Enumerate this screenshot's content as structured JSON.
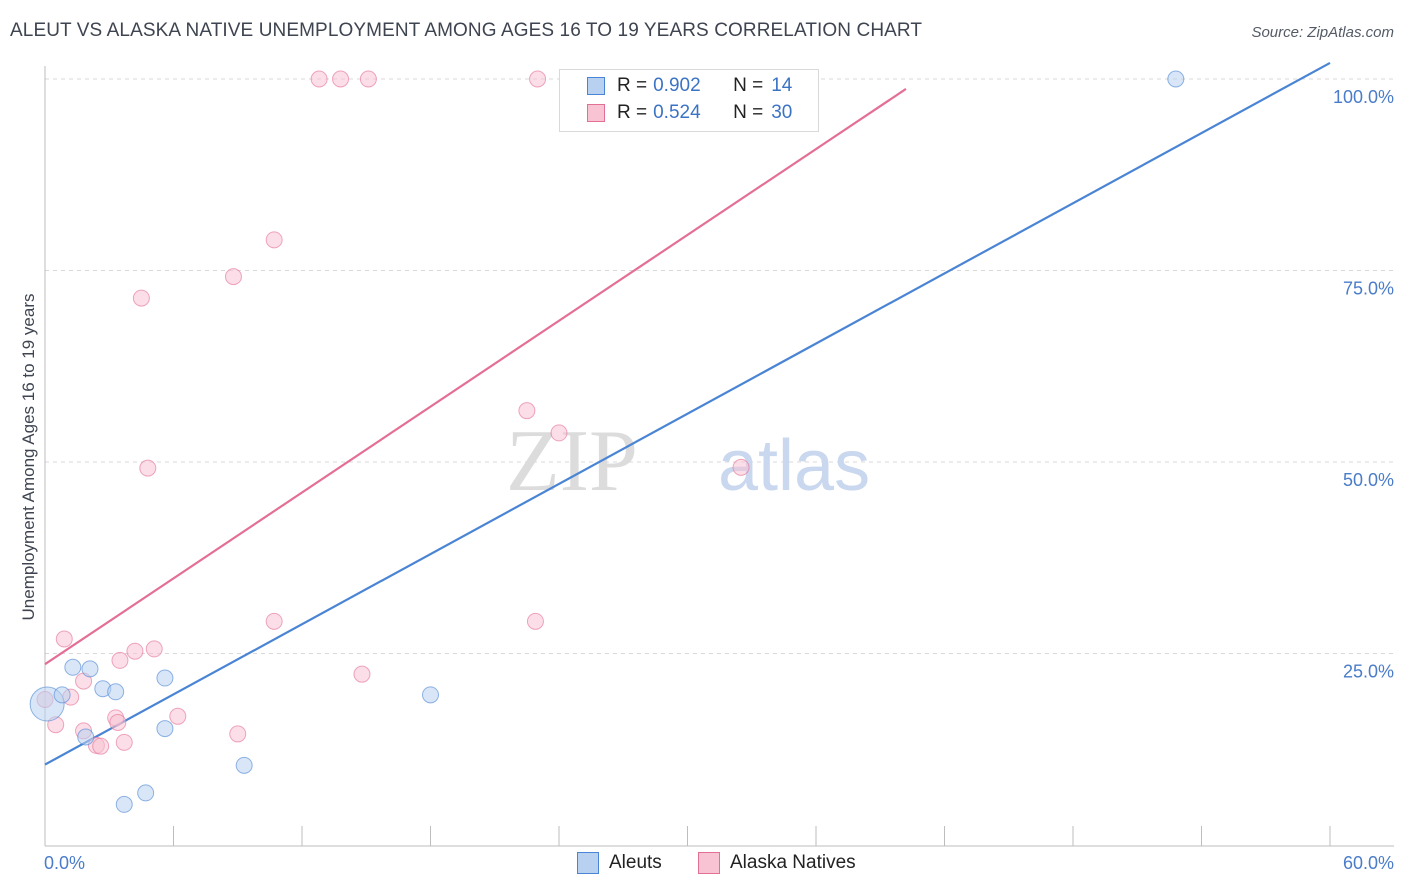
{
  "chart_data": {
    "type": "scatter",
    "title": "ALEUT VS ALASKA NATIVE UNEMPLOYMENT AMONG AGES 16 TO 19 YEARS CORRELATION CHART",
    "source": "Source: ZipAtlas.com",
    "ylabel": "Unemployment Among Ages 16 to 19 years",
    "xlabel": "",
    "xlim": [
      0,
      60
    ],
    "ylim": [
      0,
      100
    ],
    "x_tick_labels": {
      "min": "0.0%",
      "max": "60.0%"
    },
    "y_ticks": [
      {
        "value": 25,
        "label": "25.0%"
      },
      {
        "value": 50,
        "label": "50.0%"
      },
      {
        "value": 75,
        "label": "75.0%"
      },
      {
        "value": 100,
        "label": "100.0%"
      }
    ],
    "watermark": {
      "part1": "ZIP",
      "part2": "atlas"
    },
    "legend": {
      "rows": [
        {
          "r_label": "R =",
          "r_value": "0.902",
          "n_label": "N =",
          "n_value": "14"
        },
        {
          "r_label": "R =",
          "r_value": "0.524",
          "n_label": "N =",
          "n_value": "30"
        }
      ]
    },
    "series": [
      {
        "name": "Aleuts",
        "color": "#4a84d4",
        "fill": "#b9d1f0",
        "points": [
          [
            0.1,
            18.4
          ],
          [
            0.8,
            19.6
          ],
          [
            1.3,
            23.2
          ],
          [
            2.1,
            23.0
          ],
          [
            2.7,
            20.4
          ],
          [
            3.3,
            20.0
          ],
          [
            1.9,
            14.1
          ],
          [
            5.6,
            21.8
          ],
          [
            5.6,
            15.2
          ],
          [
            9.3,
            10.4
          ],
          [
            3.7,
            5.3
          ],
          [
            4.7,
            6.8
          ],
          [
            18.0,
            19.6
          ],
          [
            52.8,
            100.0
          ]
        ],
        "trend": {
          "x": [
            0,
            60
          ],
          "y": [
            10.5,
            102.1
          ]
        }
      },
      {
        "name": "Alaska Natives",
        "color": "#e46f94",
        "fill": "#f8c3d3",
        "points": [
          [
            0.0,
            19.0
          ],
          [
            0.5,
            15.7
          ],
          [
            0.9,
            26.9
          ],
          [
            1.2,
            19.3
          ],
          [
            1.8,
            21.4
          ],
          [
            1.8,
            14.9
          ],
          [
            2.4,
            13.0
          ],
          [
            2.6,
            12.9
          ],
          [
            3.3,
            16.6
          ],
          [
            3.4,
            16.0
          ],
          [
            3.5,
            24.1
          ],
          [
            3.7,
            13.4
          ],
          [
            4.2,
            25.3
          ],
          [
            5.1,
            25.6
          ],
          [
            6.2,
            16.8
          ],
          [
            4.5,
            71.4
          ],
          [
            4.8,
            49.2
          ],
          [
            9.0,
            14.5
          ],
          [
            8.8,
            74.2
          ],
          [
            10.7,
            79.0
          ],
          [
            10.7,
            29.2
          ],
          [
            12.8,
            100.0
          ],
          [
            13.8,
            100.0
          ],
          [
            15.1,
            100.0
          ],
          [
            14.8,
            22.3
          ],
          [
            22.5,
            56.7
          ],
          [
            23.0,
            100.0
          ],
          [
            22.9,
            29.2
          ],
          [
            24.0,
            53.8
          ],
          [
            32.5,
            49.3
          ]
        ],
        "trend": {
          "x": [
            0,
            40.2
          ],
          "y": [
            23.6,
            98.7
          ]
        }
      }
    ]
  }
}
